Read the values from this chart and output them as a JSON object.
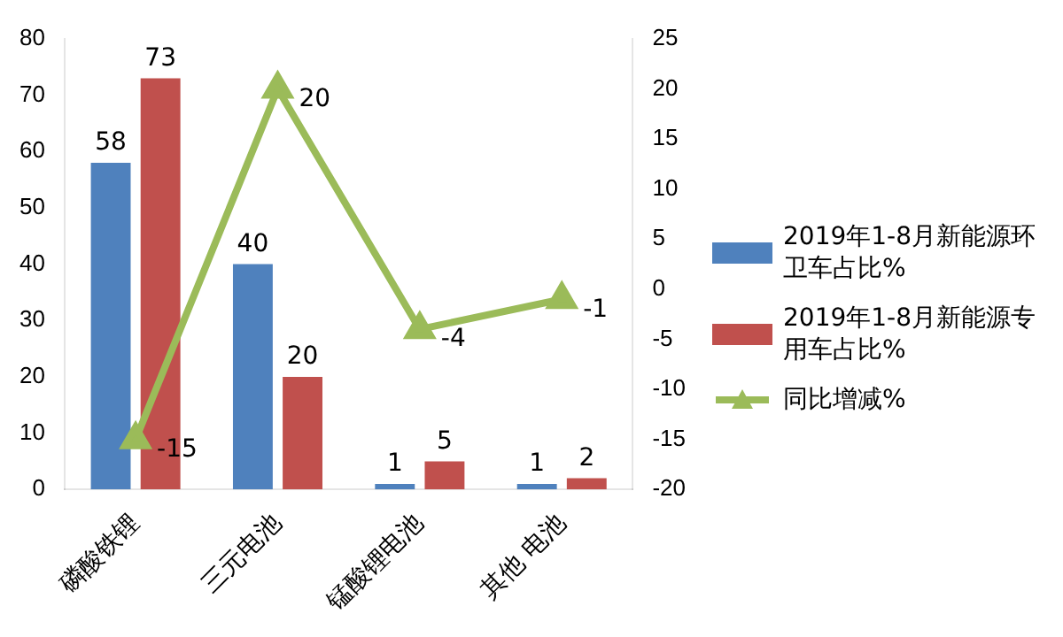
{
  "chart_data": {
    "type": "bar",
    "categories": [
      "磷酸铁锂",
      "三元电池",
      "锰酸锂电池",
      "其他 电池"
    ],
    "series": [
      {
        "name": "2019年1-8月新能源环卫车占比%",
        "color": "#4f81bd",
        "values": [
          58,
          40,
          1,
          1
        ]
      },
      {
        "name": "2019年1-8月新能源专用车占比%",
        "color": "#c0504d",
        "values": [
          73,
          20,
          5,
          2
        ]
      },
      {
        "name": "同比增减%",
        "type": "line",
        "axis": "y2",
        "color": "#9bbb59",
        "values": [
          -15,
          20,
          -4,
          -1
        ],
        "marker": "triangle"
      }
    ],
    "ylim": [
      0,
      80
    ],
    "yticks": [
      0,
      10,
      20,
      30,
      40,
      50,
      60,
      70,
      80
    ],
    "y2lim": [
      -20,
      25
    ],
    "y2ticks": [
      -20,
      -15,
      -10,
      -5,
      0,
      5,
      10,
      15,
      20,
      25
    ],
    "data_labels": true,
    "legend": "right",
    "grid": false
  }
}
